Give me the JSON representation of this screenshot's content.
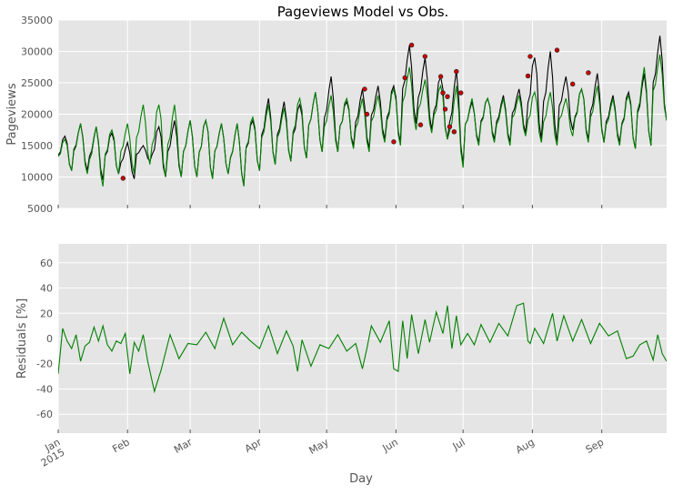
{
  "chart_data": {
    "type": "line",
    "title": "Pageviews Model vs Obs.",
    "xlabel": "Day",
    "x_range": [
      "2015-01-01",
      "2015-09-30"
    ],
    "x_ticks": [
      {
        "date": "2015-01-01",
        "label": "Jan",
        "sub": "2015"
      },
      {
        "date": "2015-02-01",
        "label": "Feb",
        "sub": ""
      },
      {
        "date": "2015-03-01",
        "label": "Mar",
        "sub": ""
      },
      {
        "date": "2015-04-01",
        "label": "Apr",
        "sub": ""
      },
      {
        "date": "2015-05-01",
        "label": "May",
        "sub": ""
      },
      {
        "date": "2015-06-01",
        "label": "Jun",
        "sub": ""
      },
      {
        "date": "2015-07-01",
        "label": "Jul",
        "sub": ""
      },
      {
        "date": "2015-08-01",
        "label": "Aug",
        "sub": ""
      },
      {
        "date": "2015-09-01",
        "label": "Sep",
        "sub": ""
      }
    ],
    "grid": true,
    "panels": [
      {
        "ylabel": "Pageviews",
        "ylim": [
          5000,
          35000
        ],
        "yticks": [
          5000,
          10000,
          15000,
          20000,
          25000,
          30000,
          35000
        ],
        "series": [
          {
            "role": "observed",
            "color": "#000000",
            "weekly": {
              "x": [
                "2015-01-01",
                "2015-01-08",
                "2015-01-15",
                "2015-01-22",
                "2015-01-29",
                "2015-02-05",
                "2015-02-12",
                "2015-02-19",
                "2015-02-26",
                "2015-03-05",
                "2015-03-12",
                "2015-03-19",
                "2015-03-26",
                "2015-04-02",
                "2015-04-09",
                "2015-04-16",
                "2015-04-23",
                "2015-04-30",
                "2015-05-07",
                "2015-05-14",
                "2015-05-21",
                "2015-05-28",
                "2015-06-04",
                "2015-06-11",
                "2015-06-18",
                "2015-06-25",
                "2015-07-02",
                "2015-07-09",
                "2015-07-16",
                "2015-07-23",
                "2015-07-30",
                "2015-08-06",
                "2015-08-13",
                "2015-08-20",
                "2015-08-27",
                "2015-09-03",
                "2015-09-10",
                "2015-09-17",
                "2015-09-24"
              ],
              "high": [
                16500,
                18500,
                18000,
                17000,
                15500,
                15000,
                18000,
                19000,
                19000,
                19000,
                18500,
                18500,
                19000,
                22500,
                22000,
                21500,
                23500,
                26000,
                22000,
                24000,
                24500,
                24500,
                31000,
                29000,
                26000,
                27000,
                22000,
                22500,
                23000,
                24000,
                29000,
                30000,
                26000,
                24000,
                26500,
                23000,
                23500,
                26500,
                32500
              ],
              "low": [
                11000,
                11000,
                9500,
                10500,
                9700,
                12500,
                10000,
                10000,
                10000,
                9800,
                10500,
                8700,
                11000,
                12000,
                12500,
                13000,
                14000,
                14000,
                15000,
                14500,
                16000,
                15500,
                18500,
                17500,
                16000,
                12000,
                15500,
                16000,
                15500,
                17000,
                16000,
                15500,
                17500,
                16000,
                15500,
                15500,
                14500,
                15000,
                19000
              ]
            }
          },
          {
            "role": "model",
            "color": "#008000",
            "weekly": {
              "x": [
                "2015-01-01",
                "2015-01-08",
                "2015-01-15",
                "2015-01-22",
                "2015-01-29",
                "2015-02-05",
                "2015-02-12",
                "2015-02-19",
                "2015-02-26",
                "2015-03-05",
                "2015-03-12",
                "2015-03-19",
                "2015-03-26",
                "2015-04-02",
                "2015-04-09",
                "2015-04-16",
                "2015-04-23",
                "2015-04-30",
                "2015-05-07",
                "2015-05-14",
                "2015-05-21",
                "2015-05-28",
                "2015-06-04",
                "2015-06-11",
                "2015-06-18",
                "2015-06-25",
                "2015-07-02",
                "2015-07-09",
                "2015-07-16",
                "2015-07-23",
                "2015-07-30",
                "2015-08-06",
                "2015-08-13",
                "2015-08-20",
                "2015-08-27",
                "2015-09-03",
                "2015-09-10",
                "2015-09-17",
                "2015-09-24"
              ],
              "high": [
                16000,
                18500,
                18000,
                17500,
                18500,
                21500,
                21500,
                21500,
                19000,
                19000,
                18500,
                18500,
                19500,
                21500,
                21000,
                22500,
                23500,
                23000,
                22500,
                22500,
                23000,
                24000,
                27500,
                25500,
                24500,
                24500,
                22500,
                22500,
                22500,
                23000,
                23500,
                23500,
                22500,
                24000,
                24500,
                22500,
                23000,
                27500,
                29500
              ],
              "low": [
                11000,
                10500,
                8500,
                10500,
                10500,
                12000,
                10000,
                10000,
                10000,
                9700,
                10500,
                8500,
                11000,
                12000,
                12500,
                13000,
                14000,
                14000,
                14500,
                14000,
                15500,
                15000,
                17500,
                17000,
                16000,
                11500,
                15000,
                15500,
                15000,
                16500,
                15500,
                15000,
                16500,
                15500,
                15500,
                15000,
                14500,
                15000,
                19000
              ]
            }
          }
        ],
        "markers": {
          "color": "#cc0000",
          "points": [
            {
              "x": "2015-01-30",
              "y": 9800
            },
            {
              "x": "2015-05-18",
              "y": 24000
            },
            {
              "x": "2015-05-19",
              "y": 20000
            },
            {
              "x": "2015-05-31",
              "y": 15600
            },
            {
              "x": "2015-06-05",
              "y": 25800
            },
            {
              "x": "2015-06-08",
              "y": 31000
            },
            {
              "x": "2015-06-12",
              "y": 18300
            },
            {
              "x": "2015-06-14",
              "y": 29200
            },
            {
              "x": "2015-06-21",
              "y": 26000
            },
            {
              "x": "2015-06-22",
              "y": 23400
            },
            {
              "x": "2015-06-23",
              "y": 20800
            },
            {
              "x": "2015-06-24",
              "y": 22800
            },
            {
              "x": "2015-06-25",
              "y": 18000
            },
            {
              "x": "2015-06-27",
              "y": 17200
            },
            {
              "x": "2015-06-28",
              "y": 26800
            },
            {
              "x": "2015-06-30",
              "y": 23400
            },
            {
              "x": "2015-07-30",
              "y": 26100
            },
            {
              "x": "2015-07-31",
              "y": 29200
            },
            {
              "x": "2015-08-12",
              "y": 30200
            },
            {
              "x": "2015-08-19",
              "y": 24800
            },
            {
              "x": "2015-08-26",
              "y": 26600
            }
          ]
        }
      },
      {
        "ylabel": "Residuals [%]",
        "ylim": [
          -75,
          75
        ],
        "yticks": [
          -60,
          -40,
          -20,
          0,
          20,
          40,
          60
        ],
        "series": [
          {
            "role": "residual",
            "color": "#008000",
            "points": {
              "x": [
                "2015-01-01",
                "2015-01-03",
                "2015-01-05",
                "2015-01-07",
                "2015-01-09",
                "2015-01-11",
                "2015-01-13",
                "2015-01-15",
                "2015-01-17",
                "2015-01-19",
                "2015-01-21",
                "2015-01-23",
                "2015-01-25",
                "2015-01-27",
                "2015-01-29",
                "2015-01-31",
                "2015-02-02",
                "2015-02-04",
                "2015-02-06",
                "2015-02-08",
                "2015-02-10",
                "2015-02-13",
                "2015-02-16",
                "2015-02-20",
                "2015-02-24",
                "2015-02-28",
                "2015-03-04",
                "2015-03-08",
                "2015-03-12",
                "2015-03-16",
                "2015-03-20",
                "2015-03-24",
                "2015-03-28",
                "2015-04-01",
                "2015-04-05",
                "2015-04-09",
                "2015-04-13",
                "2015-04-16",
                "2015-04-18",
                "2015-04-20",
                "2015-04-24",
                "2015-04-28",
                "2015-05-02",
                "2015-05-06",
                "2015-05-10",
                "2015-05-14",
                "2015-05-17",
                "2015-05-19",
                "2015-05-21",
                "2015-05-25",
                "2015-05-29",
                "2015-05-31",
                "2015-06-02",
                "2015-06-04",
                "2015-06-06",
                "2015-06-08",
                "2015-06-11",
                "2015-06-14",
                "2015-06-16",
                "2015-06-19",
                "2015-06-22",
                "2015-06-24",
                "2015-06-26",
                "2015-06-28",
                "2015-06-30",
                "2015-07-03",
                "2015-07-06",
                "2015-07-09",
                "2015-07-13",
                "2015-07-17",
                "2015-07-21",
                "2015-07-25",
                "2015-07-28",
                "2015-07-30",
                "2015-07-31",
                "2015-08-02",
                "2015-08-06",
                "2015-08-10",
                "2015-08-12",
                "2015-08-15",
                "2015-08-19",
                "2015-08-23",
                "2015-08-27",
                "2015-08-31",
                "2015-09-04",
                "2015-09-08",
                "2015-09-12",
                "2015-09-15",
                "2015-09-18",
                "2015-09-21",
                "2015-09-24",
                "2015-09-26",
                "2015-09-28",
                "2015-09-30"
              ],
              "y": [
                -28,
                8,
                -2,
                -8,
                3,
                -18,
                -6,
                -3,
                9,
                -2,
                10,
                -5,
                -10,
                -2,
                -4,
                4,
                -28,
                -3,
                -10,
                3,
                -18,
                -42,
                -25,
                3,
                -16,
                -4,
                -5,
                5,
                -8,
                16,
                -5,
                5,
                -2,
                -8,
                10,
                -12,
                6,
                -6,
                -26,
                -1,
                -22,
                -5,
                -8,
                3,
                -10,
                -4,
                -24,
                -8,
                10,
                -3,
                14,
                -24,
                -26,
                14,
                -16,
                19,
                -12,
                15,
                -3,
                21,
                4,
                26,
                -8,
                18,
                -5,
                4,
                -5,
                11,
                -3,
                12,
                2,
                26,
                28,
                -2,
                -4,
                8,
                -4,
                20,
                -2,
                18,
                -2,
                15,
                -4,
                12,
                2,
                6,
                -16,
                -14,
                -5,
                -2,
                -17,
                3,
                -12,
                -18
              ]
            }
          }
        ]
      }
    ]
  }
}
